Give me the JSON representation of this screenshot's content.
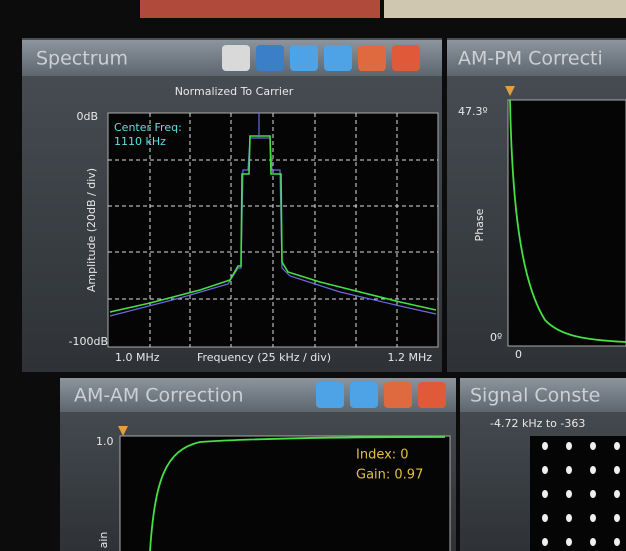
{
  "spectrum": {
    "title": "Spectrum",
    "subtitle": "Normalized To Carrier",
    "y_top": "0dB",
    "y_bottom": "-100dB",
    "y_axis_label": "Amplitude (20dB / div)",
    "center_freq_label": "Center Freq:",
    "center_freq_value": "1110 kHz",
    "x_left": "1.0 MHz",
    "x_axis_label": "Frequency (25 kHz / div)",
    "x_right": "1.2 MHz"
  },
  "am_pm": {
    "title": "AM-PM Correcti",
    "y_top": "47.3º",
    "y_axis_label": "Phase",
    "y_bottom": "0º",
    "x_left": "0"
  },
  "am_am": {
    "title": "AM-AM Correction",
    "y_top": "1.0",
    "index": "Index: 0",
    "gain": "Gain: 0.97",
    "y_axis_label": "ain"
  },
  "constellation": {
    "title": "Signal Conste",
    "range": "-4.72 kHz to -363"
  }
}
